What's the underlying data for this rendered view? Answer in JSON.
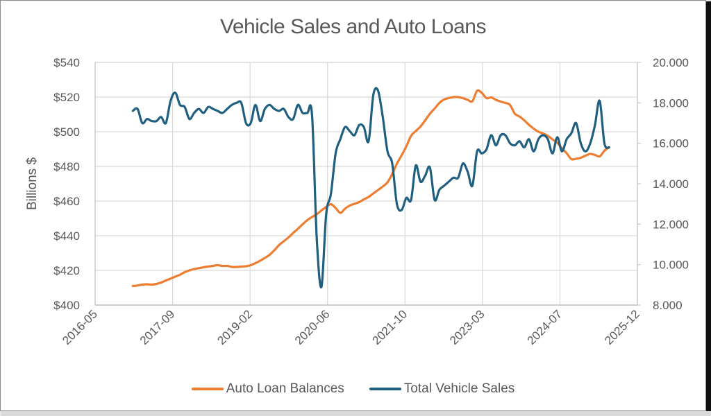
{
  "chart_data": {
    "type": "line",
    "title": "Vehicle Sales and Auto Loans",
    "xlabel": "",
    "ylabel": "Billions $",
    "y2label": "",
    "ylim": [
      400,
      540
    ],
    "y2lim": [
      8,
      20
    ],
    "yticks": [
      "$400",
      "$420",
      "$440",
      "$460",
      "$480",
      "$500",
      "$520",
      "$540"
    ],
    "y2ticks": [
      "8.000",
      "10.000",
      "12.000",
      "14.000",
      "16.000",
      "18.000",
      "20.000"
    ],
    "xticks": [
      "2016-05",
      "2017-09",
      "2019-02",
      "2020-06",
      "2021-10",
      "2023-03",
      "2024-07",
      "2025-12"
    ],
    "grid": true,
    "legend_position": "bottom",
    "x": [
      "2017-01",
      "2017-02",
      "2017-03",
      "2017-04",
      "2017-05",
      "2017-06",
      "2017-07",
      "2017-08",
      "2017-09",
      "2017-10",
      "2017-11",
      "2017-12",
      "2018-01",
      "2018-02",
      "2018-03",
      "2018-04",
      "2018-05",
      "2018-06",
      "2018-07",
      "2018-08",
      "2018-09",
      "2018-10",
      "2018-11",
      "2018-12",
      "2019-01",
      "2019-02",
      "2019-03",
      "2019-04",
      "2019-05",
      "2019-06",
      "2019-07",
      "2019-08",
      "2019-09",
      "2019-10",
      "2019-11",
      "2019-12",
      "2020-01",
      "2020-02",
      "2020-03",
      "2020-04",
      "2020-05",
      "2020-06",
      "2020-07",
      "2020-08",
      "2020-09",
      "2020-10",
      "2020-11",
      "2020-12",
      "2021-01",
      "2021-02",
      "2021-03",
      "2021-04",
      "2021-05",
      "2021-06",
      "2021-07",
      "2021-08",
      "2021-09",
      "2021-10",
      "2021-11",
      "2021-12",
      "2022-01",
      "2022-02",
      "2022-03",
      "2022-04",
      "2022-05",
      "2022-06",
      "2022-07",
      "2022-08",
      "2022-09",
      "2022-10",
      "2022-11",
      "2022-12",
      "2023-01",
      "2023-02",
      "2023-03",
      "2023-04",
      "2023-05",
      "2023-06",
      "2023-07",
      "2023-08",
      "2023-09",
      "2023-10",
      "2023-11",
      "2023-12",
      "2024-01",
      "2024-02",
      "2024-03",
      "2024-04",
      "2024-05",
      "2024-06",
      "2024-07",
      "2024-08",
      "2024-09",
      "2024-10",
      "2024-11",
      "2024-12",
      "2025-01",
      "2025-02",
      "2025-03",
      "2025-04",
      "2025-05",
      "2025-06"
    ],
    "series": [
      {
        "name": "Auto Loan Balances",
        "axis": "left",
        "color": "#ED7D31",
        "values": [
          411,
          411.3,
          411.8,
          412,
          411.8,
          412.2,
          413,
          414.2,
          415.3,
          416.4,
          417.5,
          419,
          420,
          420.8,
          421.3,
          421.8,
          422.2,
          422.6,
          423,
          422.6,
          422.6,
          422,
          422,
          422.2,
          422.4,
          423,
          424.2,
          425.6,
          427.2,
          429,
          431.6,
          434.6,
          436.8,
          439,
          441.6,
          444,
          446.6,
          449,
          450.8,
          452.4,
          454.6,
          456.6,
          458.2,
          456,
          453.2,
          455.6,
          457.4,
          458.4,
          459.4,
          461,
          462.4,
          464.4,
          466.4,
          468.4,
          470.8,
          475.6,
          481.6,
          486.4,
          491.6,
          497.6,
          500.4,
          503,
          506.6,
          510.4,
          513.4,
          516.6,
          518.6,
          519.4,
          520,
          520,
          519.4,
          518.4,
          517.6,
          523.6,
          522.4,
          519.4,
          519.8,
          518.4,
          517.4,
          516.6,
          515.4,
          510.4,
          508.8,
          506.6,
          504,
          501.8,
          500,
          499,
          497.6,
          495.6,
          493.6,
          490.4,
          487.6,
          484.2,
          484.4,
          485,
          486.2,
          487.2,
          486.6,
          485.8,
          489,
          491
        ]
      },
      {
        "name": "Total Vehicle Sales",
        "axis": "right",
        "color": "#1F5F7F",
        "values": [
          17.6,
          17.7,
          17.0,
          17.2,
          17.1,
          17.1,
          17.3,
          17.0,
          18.1,
          18.5,
          17.9,
          17.8,
          17.2,
          17.5,
          17.7,
          17.5,
          17.8,
          17.7,
          17.6,
          17.5,
          17.7,
          17.9,
          18.0,
          18.0,
          17.0,
          17.0,
          17.9,
          17.1,
          17.7,
          17.9,
          17.7,
          17.6,
          17.7,
          17.3,
          17.2,
          17.9,
          17.5,
          17.5,
          17.4,
          11.3,
          8.9,
          12.5,
          13.5,
          15.5,
          16.2,
          16.8,
          16.6,
          16.4,
          16.9,
          16.8,
          16.1,
          18.4,
          18.6,
          17.3,
          15.6,
          15.0,
          13.0,
          12.7,
          13.3,
          13.2,
          14.9,
          14.1,
          14.4,
          14.8,
          13.2,
          13.7,
          13.9,
          14.1,
          14.3,
          14.3,
          15.0,
          14.6,
          13.9,
          15.6,
          15.5,
          15.7,
          16.4,
          15.9,
          16.4,
          16.4,
          16.0,
          15.9,
          16.1,
          15.8,
          16.2,
          15.6,
          16.2,
          16.4,
          16.2,
          15.5,
          16.3,
          15.6,
          16.2,
          16.5,
          17.0,
          16.0,
          15.6,
          16.0,
          16.9,
          18.1,
          16.0,
          15.8
        ]
      }
    ]
  },
  "legend": {
    "items": [
      {
        "label": "Auto Loan Balances",
        "color": "#ED7D31"
      },
      {
        "label": "Total Vehicle Sales",
        "color": "#1F5F7F"
      }
    ]
  }
}
